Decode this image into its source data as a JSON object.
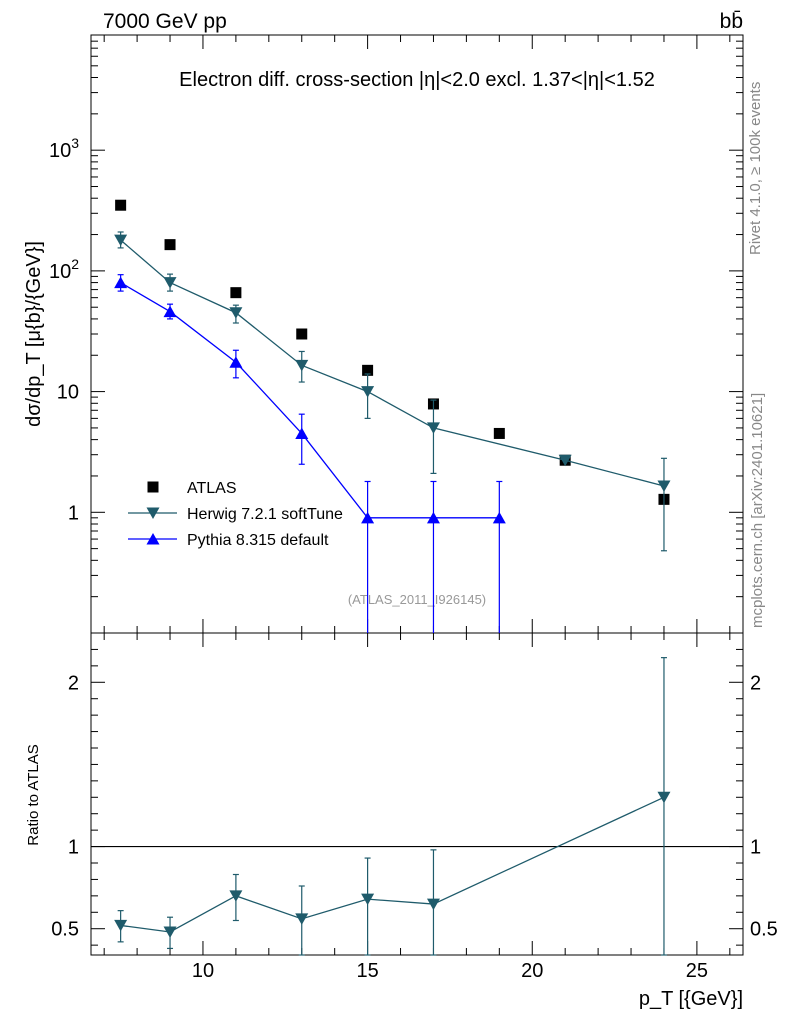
{
  "header": {
    "energy_label": "7000 GeV pp",
    "process_label": "bb̄",
    "rivet_label": "Rivet 4.1.0, ≥ 100k events",
    "site_label": "mcplots.cern.ch [arXiv:2401.10621]",
    "analysis_label": "(ATLAS_2011_I926145)"
  },
  "colors": {
    "data": "#000000",
    "herwig": "#1f5b6b",
    "pythia": "#0000ff",
    "axis": "#000000",
    "watermark": "#999999"
  },
  "chart_data": [
    {
      "type": "scatter",
      "panel": "main",
      "title": "Electron diff. cross-section |η|<2.0 excl. 1.37<|η|<1.52",
      "xlabel": "p_T [{GeV}]",
      "ylabel": "dσ/dp_T [μ{b}/{GeV}]",
      "yscale": "log",
      "xlim": [
        6.6,
        26.4
      ],
      "ylim": [
        0.1,
        9000
      ],
      "ytick_labels": [
        "1",
        "10",
        "10^2",
        "10^3"
      ],
      "legend_position": "lower-left",
      "series": [
        {
          "name": "ATLAS",
          "marker": "square",
          "x": [
            7.5,
            9,
            11,
            13,
            15,
            17,
            19,
            21,
            24
          ],
          "y": [
            350,
            165,
            66,
            30,
            15,
            7.9,
            4.5,
            2.7,
            1.28
          ]
        },
        {
          "name": "Herwig 7.2.1 softTune",
          "marker": "triangle-down",
          "line": true,
          "x": [
            7.5,
            9,
            11,
            13,
            15,
            17,
            21,
            24
          ],
          "y": [
            180,
            80,
            45,
            16.5,
            10,
            5,
            2.7,
            1.65
          ],
          "yerr_low": [
            155,
            68,
            37,
            12,
            6,
            2.1,
            2.7,
            0.48
          ],
          "yerr_high": [
            210,
            94,
            52,
            21.5,
            14,
            8.5,
            2.7,
            2.8
          ]
        },
        {
          "name": "Pythia 8.315 default",
          "marker": "triangle-up",
          "line": true,
          "x": [
            7.5,
            9,
            11,
            13,
            15,
            17,
            19
          ],
          "y": [
            80,
            46,
            17.5,
            4.5,
            0.9,
            0.9,
            0.9
          ],
          "yerr_low": [
            68,
            40,
            13,
            2.5,
            0.0,
            0.0,
            0.0
          ],
          "yerr_high": [
            93,
            53,
            22,
            6.5,
            1.8,
            1.8,
            1.8
          ]
        }
      ]
    },
    {
      "type": "line",
      "panel": "ratio",
      "ylabel": "Ratio to ATLAS",
      "xlabel": "p_T [{GeV}]",
      "xlim": [
        6.6,
        26.4
      ],
      "ylim": [
        0.34,
        2.3
      ],
      "ytick_labels": [
        "0.5",
        "1",
        "2"
      ],
      "xtick_labels": [
        "10",
        "15",
        "20",
        "25"
      ],
      "reference_line": 1,
      "series": [
        {
          "name": "Herwig 7.2.1 softTune",
          "marker": "triangle-down",
          "x": [
            7.5,
            9,
            11,
            13,
            15,
            17,
            24
          ],
          "y": [
            0.52,
            0.48,
            0.7,
            0.56,
            0.68,
            0.65,
            1.3
          ],
          "yerr_low": [
            0.42,
            0.38,
            0.55,
            0.34,
            0.34,
            0.34,
            0.34
          ],
          "yerr_high": [
            0.61,
            0.57,
            0.83,
            0.76,
            0.93,
            0.98,
            2.15
          ]
        }
      ]
    }
  ]
}
